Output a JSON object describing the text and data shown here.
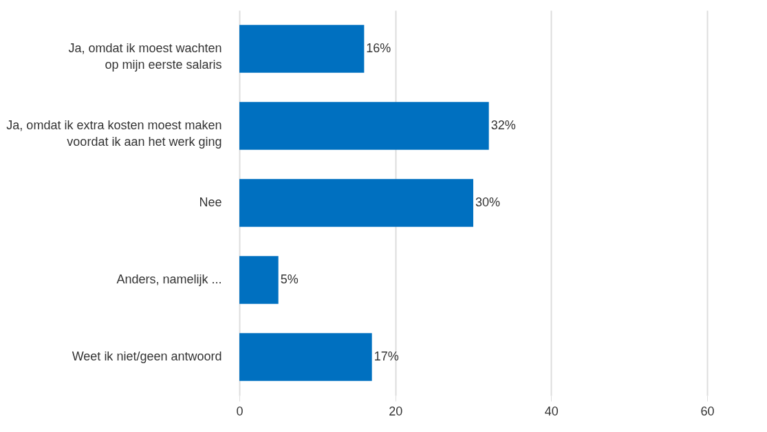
{
  "chart_data": {
    "type": "bar",
    "orientation": "horizontal",
    "categories": [
      "Ja, omdat ik moest wachten\nop mijn eerste salaris",
      "Ja, omdat ik extra kosten moest maken\nvoordat ik aan het werk ging",
      "Nee",
      "Anders, namelijk ...",
      "Weet ik niet/geen antwoord"
    ],
    "values": [
      16,
      32,
      30,
      5,
      17
    ],
    "value_labels": [
      "16%",
      "32%",
      "30%",
      "5%",
      "17%"
    ],
    "color": "#0070c0",
    "xlim": [
      0,
      60
    ],
    "xticks": [
      0,
      20,
      40,
      60
    ],
    "grid": "x"
  }
}
